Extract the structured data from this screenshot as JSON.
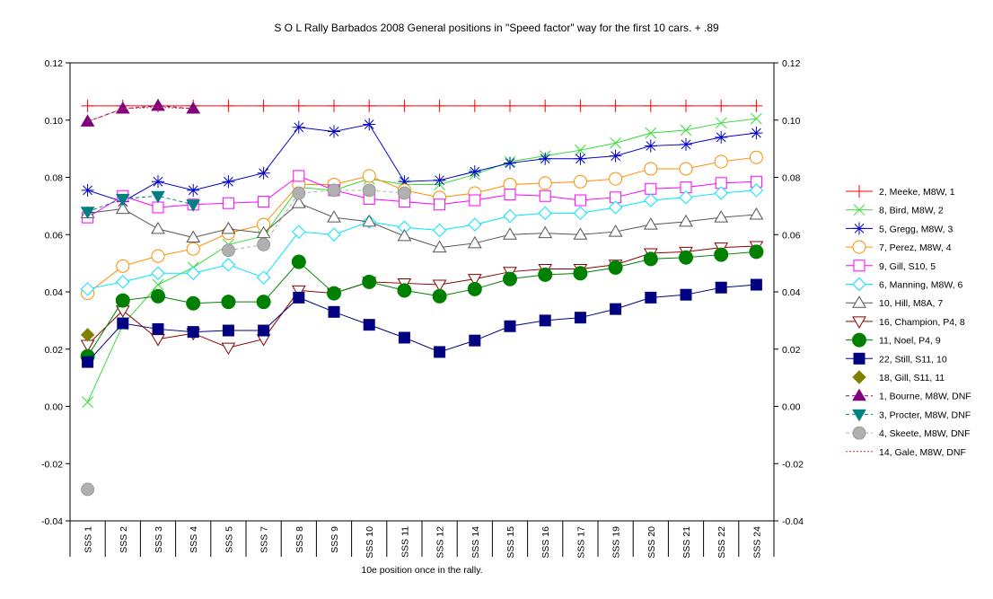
{
  "chart_data": {
    "type": "line",
    "title": "S O L Rally Barbados 2008  General positions in \"Speed factor\" way for the first 10 cars. + .89",
    "xlabel": "10e position once in the rally.",
    "ylabel": "",
    "ylim": [
      -0.04,
      0.12
    ],
    "yticks": [
      "-0.04",
      "-0.02",
      "0.00",
      "0.02",
      "0.04",
      "0.06",
      "0.08",
      "0.10",
      "0.12"
    ],
    "y_axis_right": true,
    "grid": false,
    "legend_position": "right",
    "categories": [
      "SSS 1",
      "SSS 2",
      "SSS 3",
      "SSS 4",
      "SSS 5",
      "SSS 7",
      "SSS 8",
      "SSS 9",
      "SSS 10",
      "SSS 11",
      "SSS 12",
      "SSS 14",
      "SSS 15",
      "SSS 16",
      "SSS 17",
      "SSS 19",
      "SSS 20",
      "SSS 21",
      "SSS 22",
      "SSS 24"
    ],
    "series": [
      {
        "name": "2, Meeke, M8W, 1",
        "color": "#ff0000",
        "marker": "plus",
        "line": "solid",
        "values": [
          0.105,
          0.105,
          0.105,
          0.105,
          0.105,
          0.105,
          0.105,
          0.105,
          0.105,
          0.105,
          0.105,
          0.105,
          0.105,
          0.105,
          0.105,
          0.105,
          0.105,
          0.105,
          0.105,
          0.105
        ]
      },
      {
        "name": "8, Bird, M8W, 2",
        "color": "#33dd33",
        "marker": "x",
        "line": "solid",
        "values": [
          0.0015,
          0.0285,
          0.0425,
          0.0485,
          0.0565,
          0.0595,
          0.0765,
          0.0755,
          0.0795,
          0.0775,
          0.0775,
          0.081,
          0.0855,
          0.0875,
          0.0895,
          0.092,
          0.0955,
          0.0965,
          0.099,
          0.1005
        ]
      },
      {
        "name": "5, Gregg, M8W, 3",
        "color": "#0000cc",
        "marker": "star",
        "line": "solid",
        "values": [
          0.0755,
          0.0715,
          0.0785,
          0.0755,
          0.0785,
          0.0815,
          0.0975,
          0.096,
          0.0985,
          0.0785,
          0.079,
          0.082,
          0.085,
          0.0865,
          0.0865,
          0.0875,
          0.091,
          0.0915,
          0.094,
          0.0955
        ]
      },
      {
        "name": "7, Perez, M8W, 4",
        "color": "#ff8c00",
        "marker": "circle-open",
        "line": "solid",
        "values": [
          0.0395,
          0.049,
          0.0525,
          0.055,
          0.0605,
          0.0635,
          0.0775,
          0.0775,
          0.0805,
          0.0755,
          0.073,
          0.0745,
          0.0775,
          0.078,
          0.0785,
          0.0795,
          0.083,
          0.083,
          0.0855,
          0.087
        ]
      },
      {
        "name": "9, Gill, S10, 5",
        "color": "#ff00ff",
        "marker": "square-open",
        "line": "solid",
        "values": [
          0.066,
          0.0735,
          0.0695,
          0.0705,
          0.071,
          0.0715,
          0.0805,
          0.0755,
          0.0725,
          0.0715,
          0.0705,
          0.072,
          0.074,
          0.0735,
          0.072,
          0.073,
          0.076,
          0.0765,
          0.078,
          0.0785
        ]
      },
      {
        "name": "6, Manning, M8W, 6",
        "color": "#00e5ff",
        "marker": "diamond-open",
        "line": "solid",
        "values": [
          0.041,
          0.0435,
          0.0465,
          0.0465,
          0.0495,
          0.045,
          0.061,
          0.06,
          0.0645,
          0.0625,
          0.0615,
          0.0635,
          0.0665,
          0.0675,
          0.0675,
          0.0695,
          0.072,
          0.073,
          0.0745,
          0.0755
        ]
      },
      {
        "name": "10, Hill, M8A, 7",
        "color": "#555555",
        "marker": "triangle-up-open",
        "line": "solid",
        "values": [
          0.0675,
          0.069,
          0.062,
          0.059,
          0.062,
          0.0605,
          0.071,
          0.066,
          0.0645,
          0.0595,
          0.0555,
          0.057,
          0.06,
          0.0605,
          0.06,
          0.061,
          0.0635,
          0.0645,
          0.066,
          0.067
        ]
      },
      {
        "name": "16, Champion, P4, 8",
        "color": "#8b0000",
        "marker": "triangle-down-open",
        "line": "solid",
        "values": [
          0.0215,
          0.0335,
          0.0235,
          0.0255,
          0.0205,
          0.0235,
          0.0405,
          0.0395,
          0.0435,
          0.043,
          0.0425,
          0.0445,
          0.047,
          0.048,
          0.048,
          0.0495,
          0.0535,
          0.054,
          0.0555,
          0.056
        ]
      },
      {
        "name": "11, Noel, P4, 9",
        "color": "#008000",
        "marker": "circle-filled",
        "line": "solid",
        "values": [
          0.0175,
          0.037,
          0.0385,
          0.036,
          0.0365,
          0.0365,
          0.0505,
          0.0395,
          0.0435,
          0.0405,
          0.0385,
          0.041,
          0.0445,
          0.046,
          0.0465,
          0.0485,
          0.0515,
          0.052,
          0.053,
          0.054
        ]
      },
      {
        "name": "22, Still, S11, 10",
        "color": "#000080",
        "marker": "square-filled",
        "line": "solid",
        "values": [
          0.0155,
          0.029,
          0.027,
          0.026,
          0.0265,
          0.0265,
          0.038,
          0.033,
          0.0285,
          0.024,
          0.019,
          0.023,
          0.028,
          0.03,
          0.031,
          0.034,
          0.038,
          0.039,
          0.0415,
          0.0425
        ]
      },
      {
        "name": "18, Gill, S11, 11",
        "color": "#808000",
        "marker": "diamond-filled",
        "line": "solid",
        "values": [
          0.025,
          null,
          null,
          null,
          null,
          null,
          null,
          null,
          null,
          null,
          null,
          null,
          null,
          null,
          null,
          null,
          null,
          null,
          null,
          null
        ]
      },
      {
        "name": "1, Bourne, M8W, DNF",
        "color": "#800080",
        "marker": "triangle-up-filled",
        "line": "dashed",
        "values": [
          0.0995,
          0.104,
          0.105,
          0.104,
          null,
          null,
          null,
          null,
          null,
          null,
          null,
          null,
          null,
          null,
          null,
          null,
          null,
          null,
          null,
          null
        ]
      },
      {
        "name": "3, Procter, M8W, DNF",
        "color": "#008080",
        "marker": "triangle-down-filled",
        "line": "dashed",
        "values": [
          0.068,
          0.0725,
          0.0735,
          0.0705,
          null,
          null,
          null,
          null,
          null,
          null,
          null,
          null,
          null,
          null,
          null,
          null,
          null,
          null,
          null,
          null
        ]
      },
      {
        "name": "4, Skeete, M8W, DNF",
        "color": "#b0b0b0",
        "marker": "circle-gray",
        "line": "dashed",
        "values": [
          -0.029,
          null,
          null,
          null,
          0.0545,
          0.0565,
          0.0745,
          0.0755,
          0.0755,
          0.0745,
          null,
          null,
          null,
          null,
          null,
          null,
          null,
          null,
          null,
          null
        ]
      },
      {
        "name": "14, Gale, M8W, DNF",
        "color": "#cc3333",
        "marker": "none",
        "line": "dotted",
        "values": [
          0.0995,
          0.104,
          0.1045,
          0.104,
          null,
          null,
          null,
          null,
          null,
          null,
          null,
          null,
          null,
          null,
          null,
          null,
          null,
          null,
          null,
          null
        ]
      }
    ]
  }
}
